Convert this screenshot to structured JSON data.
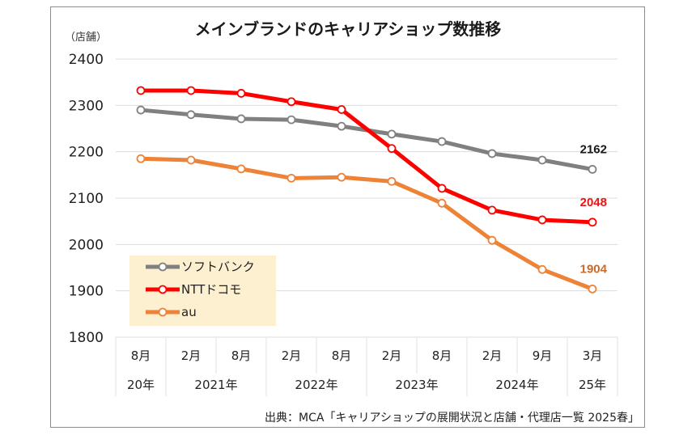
{
  "chart_data": {
    "type": "line",
    "title": "メインブランドのキャリアショップ数推移",
    "ylabel": "（店舗）",
    "xlabel": "",
    "ylim": [
      1800,
      2400
    ],
    "yticks": [
      2400,
      2300,
      2200,
      2100,
      2000,
      1900,
      1800
    ],
    "grid": true,
    "categories": [
      "20年8月",
      "2021年2月",
      "2021年8月",
      "2022年2月",
      "2022年8月",
      "2023年2月",
      "2023年8月",
      "2024年2月",
      "2024年9月",
      "25年3月"
    ],
    "month_labels": [
      "8月",
      "2月",
      "8月",
      "2月",
      "8月",
      "2月",
      "8月",
      "2月",
      "9月",
      "3月"
    ],
    "year_groups": [
      {
        "label": "20年",
        "span": 1
      },
      {
        "label": "2021年",
        "span": 2
      },
      {
        "label": "2022年",
        "span": 2
      },
      {
        "label": "2023年",
        "span": 2
      },
      {
        "label": "2024年",
        "span": 2
      },
      {
        "label": "25年",
        "span": 1
      }
    ],
    "series": [
      {
        "name": "ソフトバンク",
        "color": "#808080",
        "label_color": "#1a1a1a",
        "end_label": "2162",
        "values": [
          2290,
          2280,
          2271,
          2269,
          2255,
          2238,
          2222,
          2196,
          2182,
          2162
        ]
      },
      {
        "name": "NTTドコモ",
        "color": "#ff0000",
        "label_color": "#ee1111",
        "end_label": "2048",
        "values": [
          2332,
          2332,
          2326,
          2308,
          2291,
          2207,
          2121,
          2074,
          2053,
          2048
        ]
      },
      {
        "name": "au",
        "color": "#ee8236",
        "label_color": "#c8692a",
        "end_label": "1904",
        "values": [
          2185,
          2182,
          2163,
          2143,
          2145,
          2136,
          2089,
          2009,
          1946,
          1904
        ]
      }
    ],
    "legend": {
      "placement": "bottom-left",
      "background": "#fdf0d0"
    },
    "source": "出典：MCA「キャリアショップの展開状況と店舗・代理店一覧 2025春」"
  }
}
